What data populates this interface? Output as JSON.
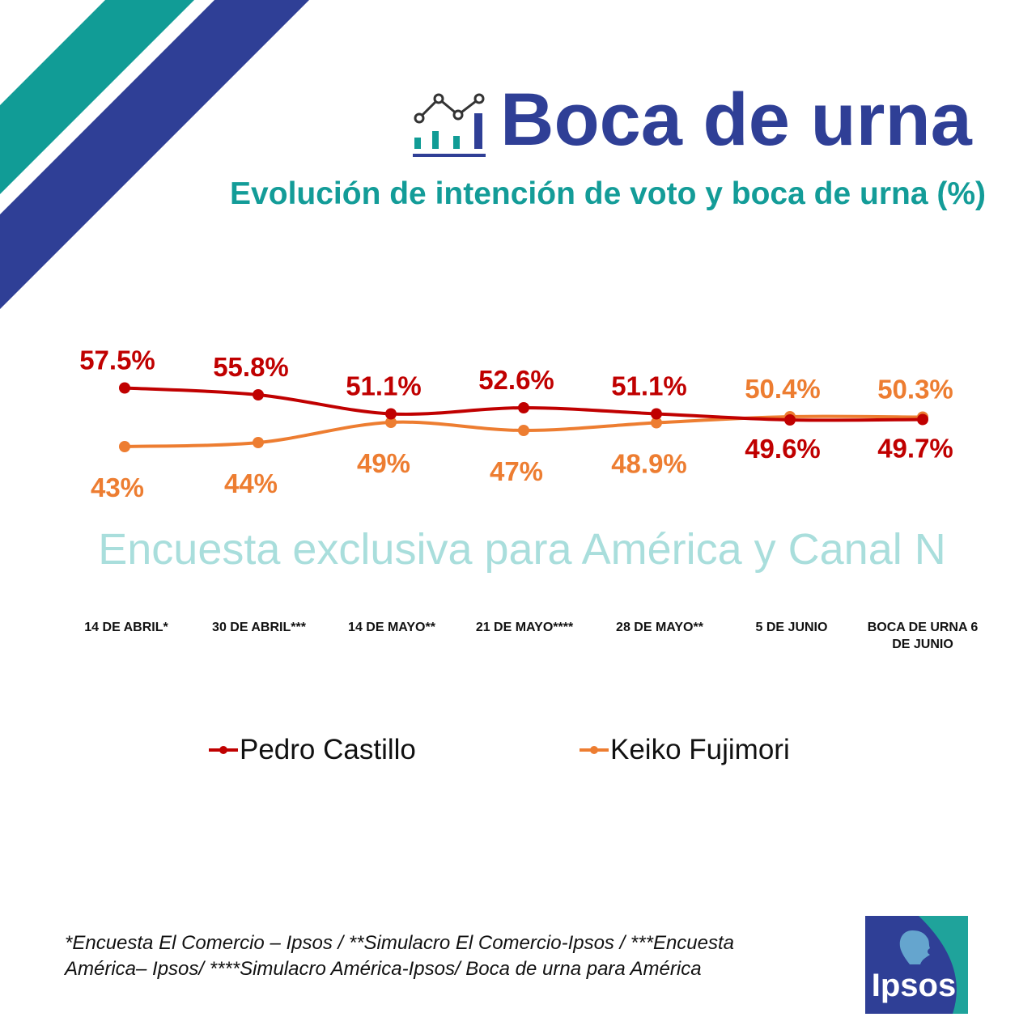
{
  "header": {
    "title": "Boca de urna",
    "subtitle": "Evolución de intención de voto y boca de urna (%)",
    "icon": "chart-line-bars-icon"
  },
  "watermark": "Encuesta exclusiva para América y Canal N",
  "chart_data": {
    "type": "line",
    "categories": [
      "14 DE ABRIL*",
      "30 DE ABRIL***",
      "14 DE MAYO**",
      "21 DE MAYO****",
      "28 DE MAYO**",
      "5 DE JUNIO",
      "BOCA DE URNA 6 DE JUNIO"
    ],
    "category_lines": [
      [
        "14 DE ABRIL*"
      ],
      [
        "30 DE ABRIL***"
      ],
      [
        "14 DE MAYO**"
      ],
      [
        "21 DE MAYO****"
      ],
      [
        "28 DE MAYO**"
      ],
      [
        "5 DE JUNIO"
      ],
      [
        "BOCA DE URNA 6",
        "DE JUNIO"
      ]
    ],
    "series": [
      {
        "name": "Pedro Castillo",
        "color": "#c00000",
        "values": [
          57.5,
          55.8,
          51.1,
          52.6,
          51.1,
          49.6,
          49.7
        ],
        "labels": [
          "57.5%",
          "55.8%",
          "51.1%",
          "52.6%",
          "51.1%",
          "49.6%",
          "49.7%"
        ],
        "label_side": [
          "above",
          "above",
          "above",
          "above",
          "above",
          "below",
          "below"
        ]
      },
      {
        "name": "Keiko Fujimori",
        "color": "#ed7d31",
        "values": [
          43,
          44,
          49,
          47,
          48.9,
          50.4,
          50.3
        ],
        "labels": [
          "43%",
          "44%",
          "49%",
          "47%",
          "48.9%",
          "50.4%",
          "50.3%"
        ],
        "label_side": [
          "below",
          "below",
          "below",
          "below",
          "below",
          "above",
          "above"
        ]
      }
    ],
    "ylim": [
      40,
      60
    ],
    "legend": "bottom",
    "grid": false
  },
  "legend": {
    "items": [
      {
        "label": "Pedro Castillo",
        "color": "#c00000"
      },
      {
        "label": "Keiko Fujimori",
        "color": "#ed7d31"
      }
    ]
  },
  "footnote": {
    "line1": "*Encuesta El Comercio – Ipsos / **Simulacro El Comercio-Ipsos / ***Encuesta",
    "line2": "América– Ipsos/ ****Simulacro América-Ipsos/ Boca de urna para América"
  },
  "logo": {
    "text": "Ipsos",
    "colors": {
      "blue": "#2f3f96",
      "teal": "#1fa39b"
    }
  },
  "colors": {
    "teal": "#119c96",
    "navy": "#2f3f96",
    "castillo": "#c00000",
    "fujimori": "#ed7d31",
    "watermark": "#a9dedc"
  }
}
